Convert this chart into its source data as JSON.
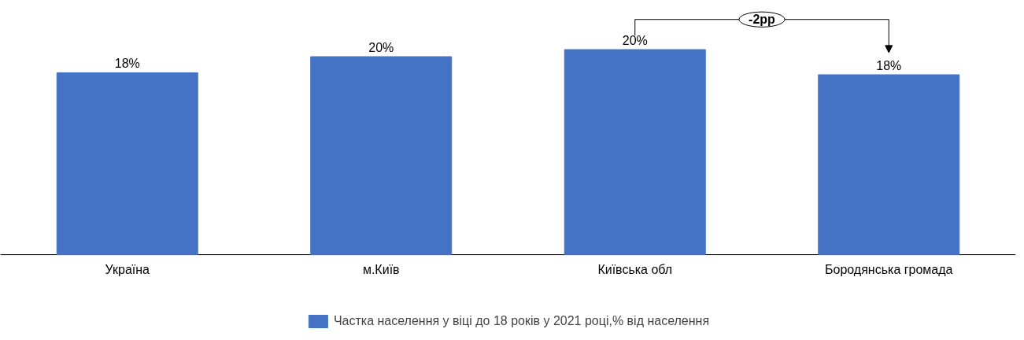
{
  "chart_data": {
    "type": "bar",
    "categories": [
      "Україна",
      "м.Київ",
      "Київська обл",
      "Бородянська громада"
    ],
    "series": [
      {
        "name": "Частка населення у віці до 18 років у 2021 році,% від населення",
        "color": "#4472c4",
        "values": [
          18.1,
          19.7,
          20.4,
          17.9
        ],
        "value_labels": [
          "18%",
          "20%",
          "20%",
          "18%"
        ]
      }
    ],
    "tick_labels": "x",
    "legend": "bottom",
    "annotations": [
      "-2pp"
    ]
  }
}
